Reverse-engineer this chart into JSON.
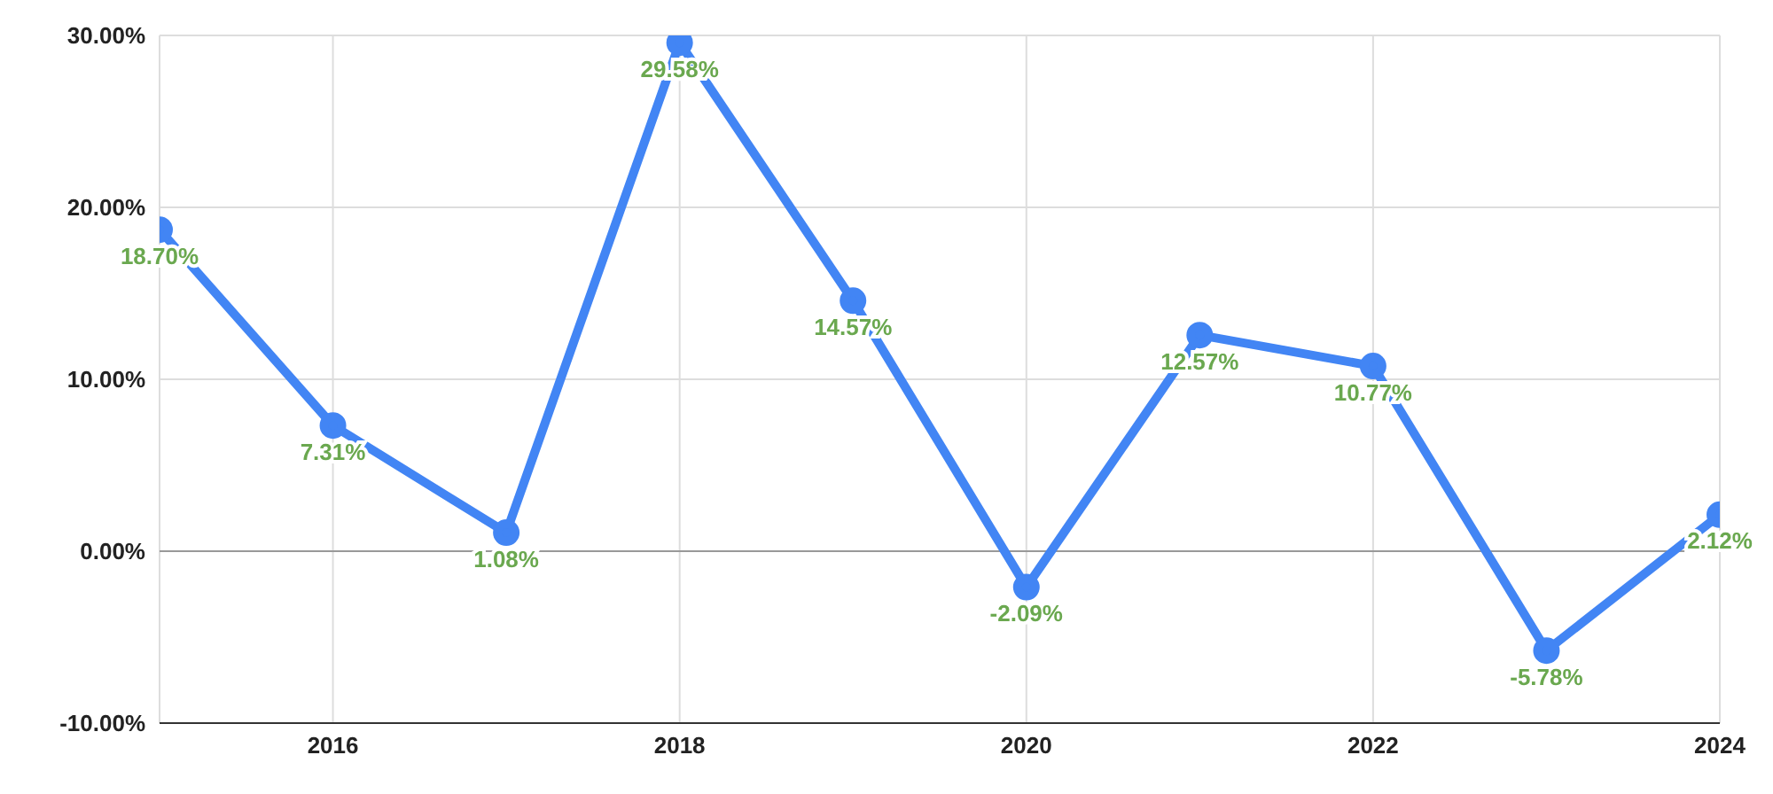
{
  "chart_data": {
    "type": "line",
    "x": [
      2015,
      2016,
      2017,
      2018,
      2019,
      2020,
      2021,
      2022,
      2023,
      2024
    ],
    "series": [
      {
        "color": "#4285f4",
        "values": [
          18.7,
          7.31,
          1.08,
          29.58,
          14.57,
          -2.09,
          12.57,
          10.77,
          -5.78,
          2.12
        ],
        "value_labels": [
          "18.70%",
          "7.31%",
          "1.08%",
          "29.58%",
          "14.57%",
          "-2.09%",
          "12.57%",
          "10.77%",
          "-5.78%",
          "2.12%"
        ]
      }
    ],
    "xlim": [
      2015,
      2024
    ],
    "xticks": [
      2016,
      2018,
      2020,
      2022,
      2024
    ],
    "ylim": [
      -10,
      30
    ],
    "yticks": [
      {
        "value": -10,
        "label": "-10.00%"
      },
      {
        "value": 0,
        "label": "0.00%"
      },
      {
        "value": 10,
        "label": "10.00%"
      },
      {
        "value": 20,
        "label": "20.00%"
      },
      {
        "value": 30,
        "label": "30.00%"
      }
    ],
    "ref_lines": [
      {
        "axis": "y",
        "value": 0,
        "color": "#999999"
      }
    ],
    "grid": true,
    "marker": "circle",
    "line_style": "solid",
    "legend": false
  }
}
